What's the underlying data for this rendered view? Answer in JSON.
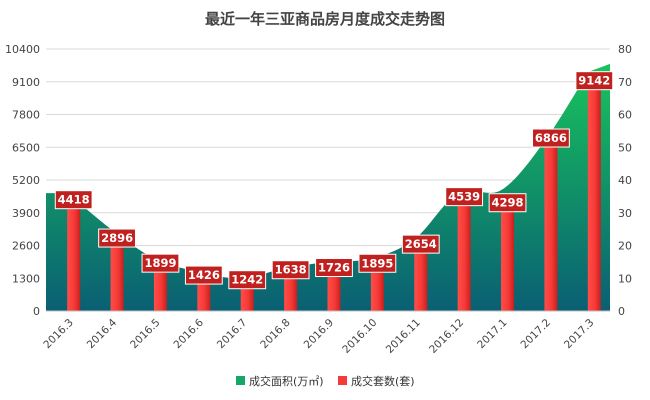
{
  "chart_data": {
    "type": "bar",
    "title": "最近一年三亚商品房月度成交走势图",
    "categories": [
      "2016.3",
      "2016.4",
      "2016.5",
      "2016.6",
      "2016.7",
      "2016.8",
      "2016.9",
      "2016.10",
      "2016.11",
      "2016.12",
      "2017.1",
      "2017.2",
      "2017.3"
    ],
    "series": [
      {
        "name": "成交面积(万㎡)",
        "kind": "area",
        "axis": "right",
        "color_top": "#18c45c",
        "color_bottom": "#0a5f73",
        "values": [
          36,
          25,
          16,
          12,
          10,
          13,
          15,
          16,
          22,
          36,
          37,
          52,
          73
        ]
      },
      {
        "name": "成交套数(套)",
        "kind": "bar",
        "axis": "left",
        "color": "#f53a37",
        "values": [
          4418,
          2896,
          1899,
          1426,
          1242,
          1638,
          1726,
          1895,
          2654,
          4539,
          4298,
          6866,
          9142
        ]
      }
    ],
    "left_axis": {
      "min": 0,
      "max": 10400,
      "ticks": [
        "0",
        "1300",
        "2600",
        "3900",
        "5200",
        "6500",
        "7800",
        "9100",
        "10400"
      ]
    },
    "right_axis": {
      "min": 0,
      "max": 80,
      "ticks": [
        "0",
        "10",
        "20",
        "30",
        "40",
        "50",
        "60",
        "70",
        "80"
      ]
    },
    "legend_position": "bottom",
    "label_bg_color": "#c0211f"
  }
}
